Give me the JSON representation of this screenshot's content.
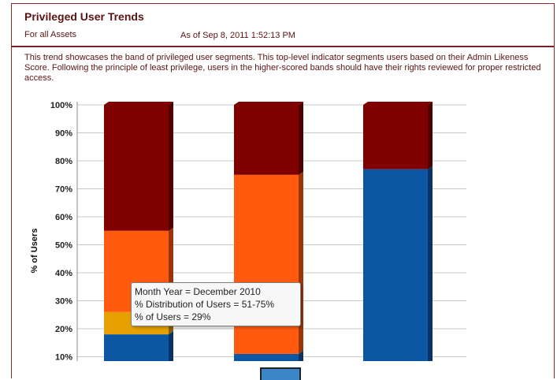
{
  "header": {
    "title": "Privileged User Trends",
    "scope": "For all Assets",
    "as_of": "As of Sep 8, 2011 1:52:13 PM"
  },
  "description": "This trend showcases the band of privileged user segments. This top-level indicator segments users based on their Admin Likeness Score. Following the principle of least privilege, users in the higher-scored bands should have their rights reviewed for proper restricted access.",
  "tooltip": {
    "line1": "Month Year = December 2010",
    "line2": "% Distribution of Users = 51-75%",
    "line3": "% of Users = 29%"
  },
  "chart_data": {
    "type": "bar",
    "stacked": true,
    "ylabel": "% of Users",
    "ylim": [
      0,
      100
    ],
    "yticks": [
      "10%",
      "20%",
      "30%",
      "40%",
      "50%",
      "60%",
      "70%",
      "80%",
      "90%",
      "100%"
    ],
    "grid": true,
    "colors": {
      "blue": "#0b57a4",
      "gold": "#e6a100",
      "orange": "#ff5a0e",
      "maroon": "#800000",
      "grid": "#c8c8c8",
      "axis": "#888888"
    },
    "bars": [
      {
        "segments": [
          {
            "color": "blue",
            "value": 18
          },
          {
            "color": "gold",
            "value": 8
          },
          {
            "color": "orange",
            "value": 29
          },
          {
            "color": "maroon",
            "value": 45
          }
        ]
      },
      {
        "segments": [
          {
            "color": "blue",
            "value": 11
          },
          {
            "color": "orange",
            "value": 64
          },
          {
            "color": "maroon",
            "value": 25
          }
        ]
      },
      {
        "segments": [
          {
            "color": "blue",
            "value": 77
          },
          {
            "color": "maroon",
            "value": 23
          }
        ]
      }
    ]
  }
}
